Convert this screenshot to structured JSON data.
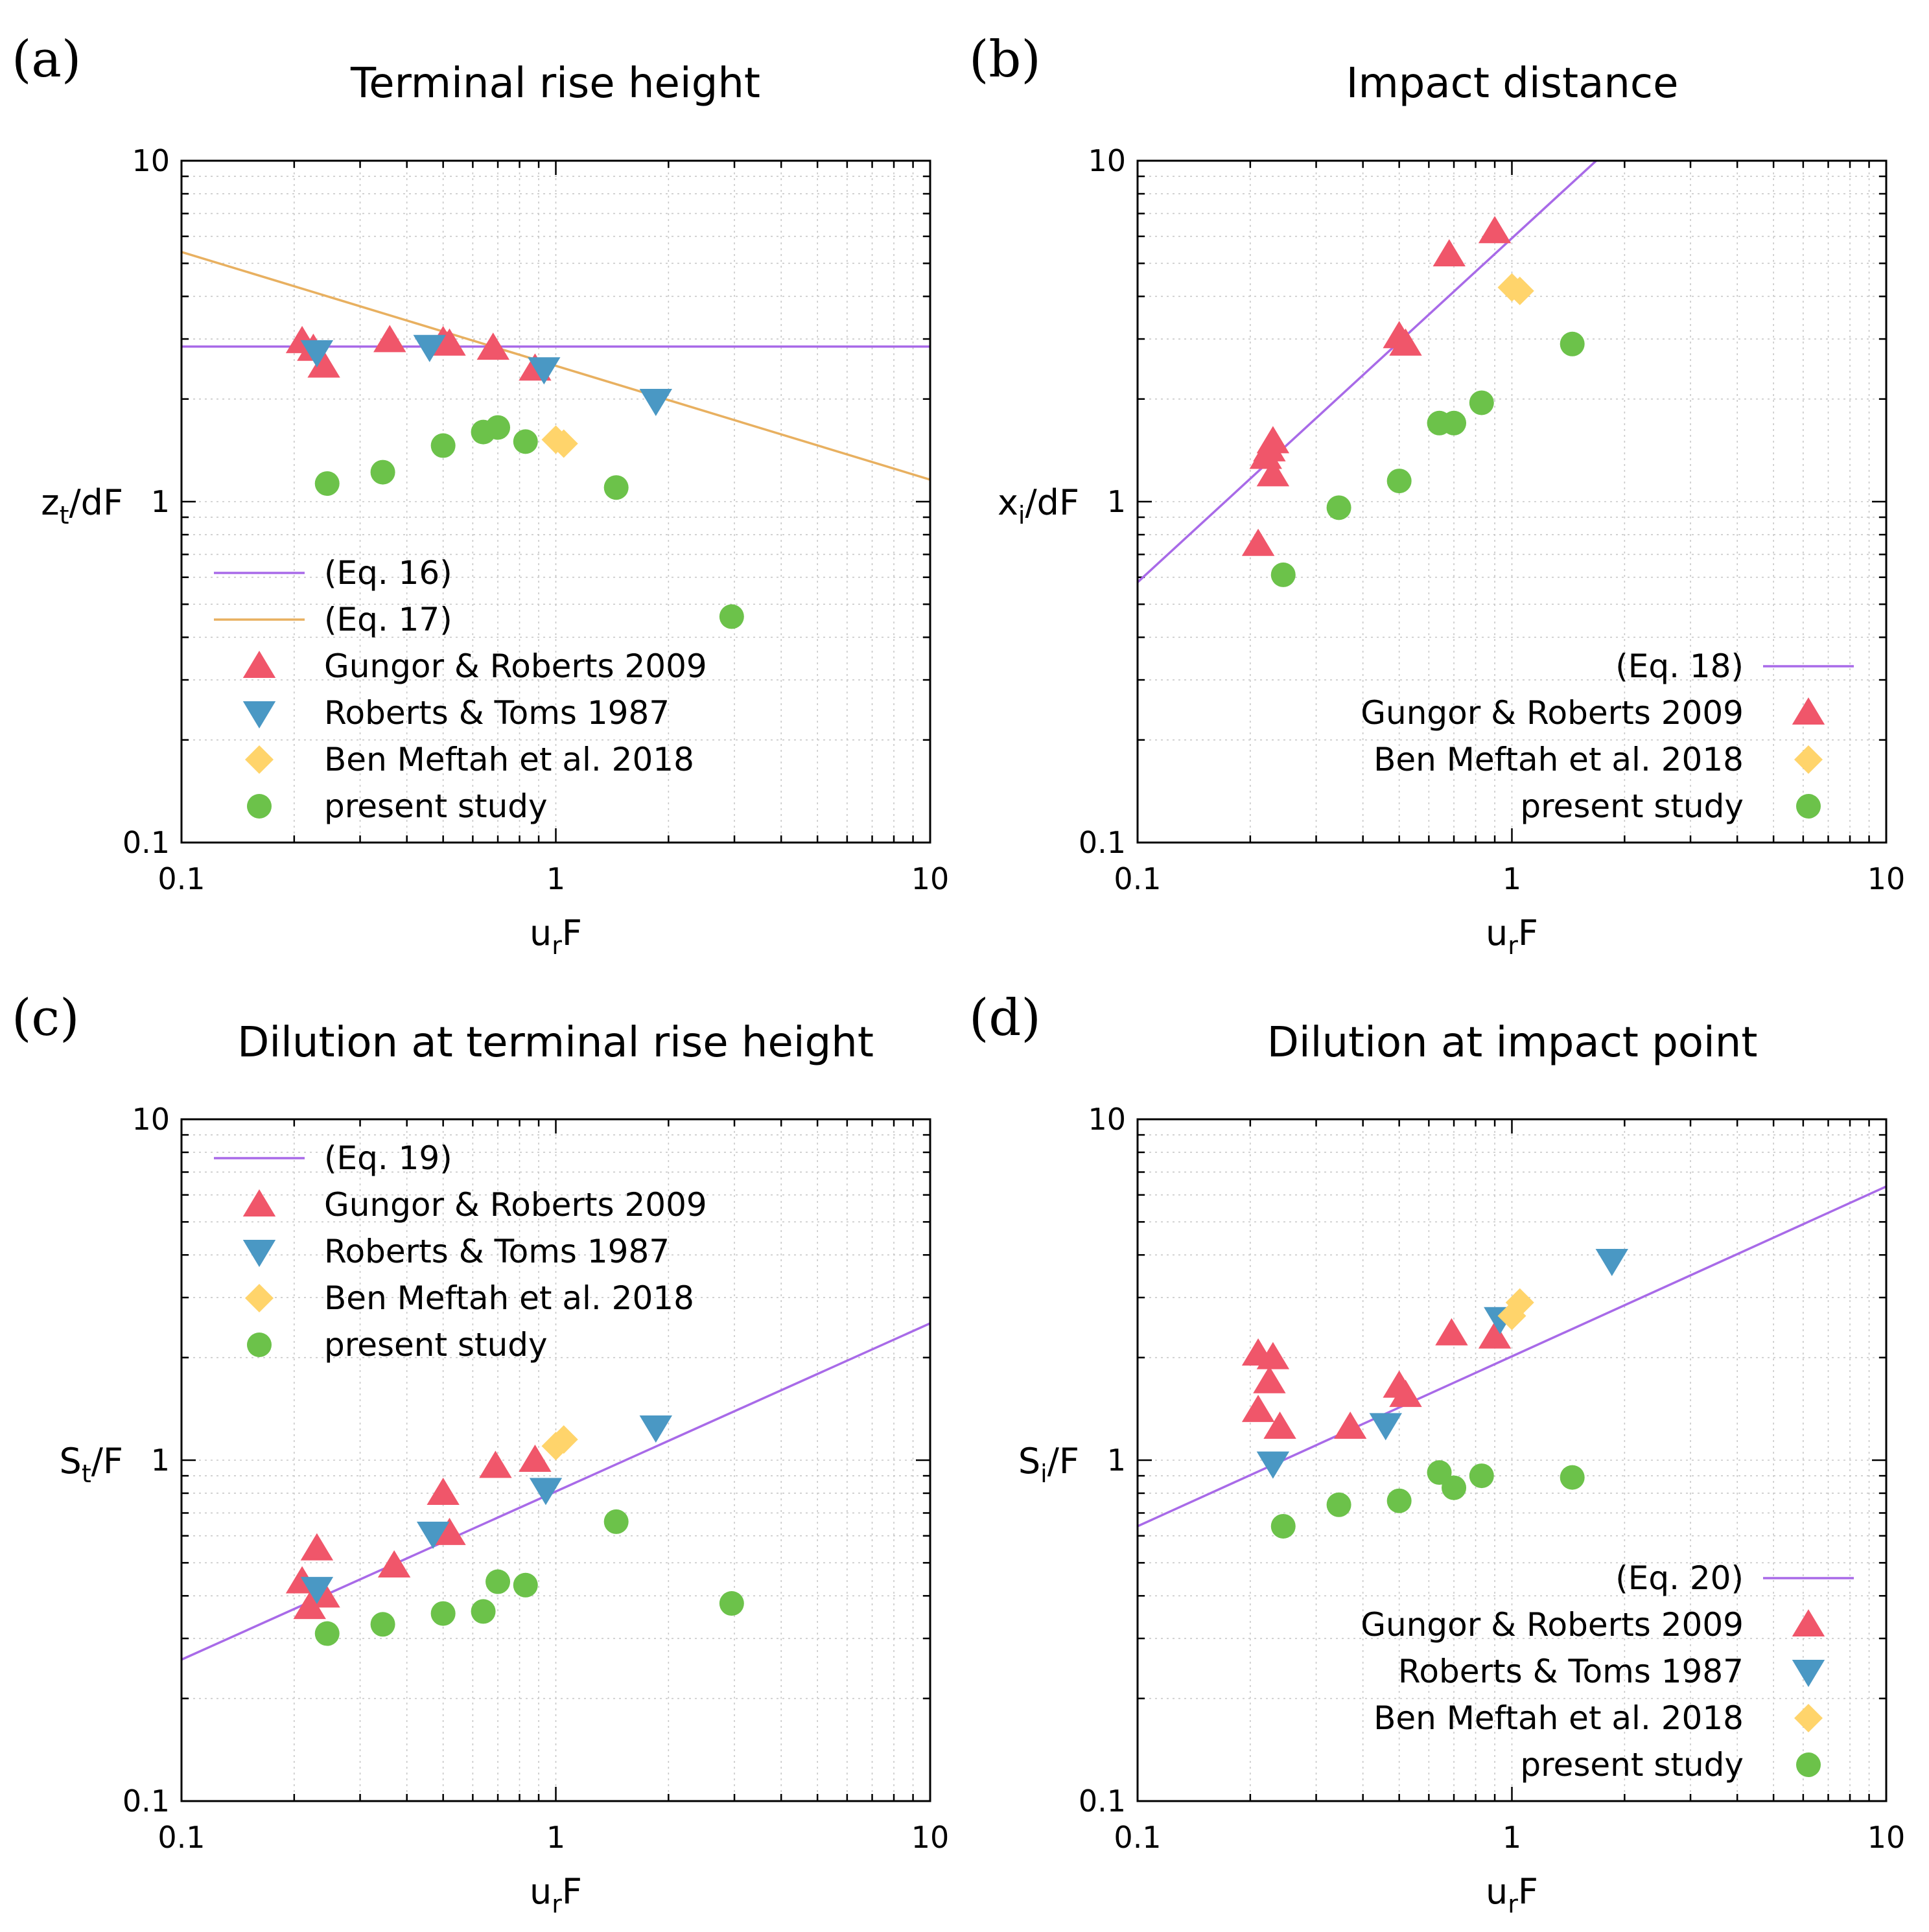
{
  "styles": {
    "Gungor & Roberts 2009": {
      "marker": "tri-up",
      "color": "#f0566a"
    },
    "Roberts & Toms 1987": {
      "marker": "tri-down",
      "color": "#4a98c4"
    },
    "Ben Meftah et al. 2018": {
      "marker": "diamond",
      "color": "#ffd46b"
    },
    "present study": {
      "marker": "circle",
      "color": "#6cc24a"
    },
    "line_purple": "#a86ae8",
    "line_orange": "#e8b060"
  },
  "chart_data": [
    {
      "id": "a",
      "panel_label": "(a)",
      "type": "scatter",
      "title": "Terminal rise height",
      "xlabel": {
        "main": "u",
        "sub": "r",
        "rest": "F"
      },
      "ylabel": {
        "main": "z",
        "sub": "t",
        "rest": "/dF"
      },
      "xscale": "log",
      "yscale": "log",
      "xlim": [
        0.1,
        10
      ],
      "ylim": [
        0.1,
        10
      ],
      "xticks": [
        "0.1",
        "1",
        "10"
      ],
      "yticks": [
        "0.1",
        "1",
        "10"
      ],
      "legend_position": "bottom-left",
      "lines": [
        {
          "name": "(Eq. 16)",
          "color": "#a86ae8",
          "x": [
            0.1,
            10
          ],
          "y": [
            2.85,
            2.85
          ]
        },
        {
          "name": "(Eq. 17)",
          "color": "#e8b060",
          "x": [
            0.1,
            10
          ],
          "y": [
            5.4,
            1.16
          ]
        }
      ],
      "series": [
        {
          "name": "Gungor & Roberts 2009",
          "points": [
            [
              0.21,
              2.95
            ],
            [
              0.225,
              2.8
            ],
            [
              0.24,
              2.5
            ],
            [
              0.36,
              2.97
            ],
            [
              0.5,
              2.95
            ],
            [
              0.52,
              2.9
            ],
            [
              0.68,
              2.82
            ],
            [
              0.88,
              2.45
            ]
          ]
        },
        {
          "name": "Roberts & Toms 1987",
          "points": [
            [
              0.23,
              2.75
            ],
            [
              0.46,
              2.85
            ],
            [
              0.93,
              2.45
            ],
            [
              1.85,
              1.98
            ]
          ]
        },
        {
          "name": "Ben Meftah et al. 2018",
          "points": [
            [
              1.0,
              1.52
            ],
            [
              1.05,
              1.48
            ]
          ]
        },
        {
          "name": "present study",
          "points": [
            [
              0.245,
              1.13
            ],
            [
              0.345,
              1.22
            ],
            [
              0.5,
              1.46
            ],
            [
              0.64,
              1.6
            ],
            [
              0.7,
              1.65
            ],
            [
              0.83,
              1.5
            ],
            [
              1.45,
              1.1
            ],
            [
              2.95,
              0.46
            ]
          ]
        }
      ],
      "legend": [
        {
          "kind": "line",
          "label": "(Eq. 16)",
          "color": "#a86ae8"
        },
        {
          "kind": "line",
          "label": "(Eq. 17)",
          "color": "#e8b060"
        },
        {
          "kind": "marker",
          "label": "Gungor & Roberts 2009"
        },
        {
          "kind": "marker",
          "label": "Roberts & Toms 1987"
        },
        {
          "kind": "marker",
          "label": "Ben Meftah et al. 2018"
        },
        {
          "kind": "marker",
          "label": "present study"
        }
      ]
    },
    {
      "id": "b",
      "panel_label": "(b)",
      "type": "scatter",
      "title": "Impact distance",
      "xlabel": {
        "main": "u",
        "sub": "r",
        "rest": "F"
      },
      "ylabel": {
        "main": "x",
        "sub": "i",
        "rest": "/dF"
      },
      "xscale": "log",
      "yscale": "log",
      "xlim": [
        0.1,
        10
      ],
      "ylim": [
        0.1,
        10
      ],
      "xticks": [
        "0.1",
        "1",
        "10"
      ],
      "yticks": [
        "0.1",
        "1",
        "10"
      ],
      "legend_position": "bottom-right",
      "lines": [
        {
          "name": "(Eq. 18)",
          "color": "#a86ae8",
          "x": [
            0.1,
            1.68
          ],
          "y": [
            0.58,
            10
          ]
        }
      ],
      "series": [
        {
          "name": "Gungor & Roberts 2009",
          "points": [
            [
              0.21,
              0.75
            ],
            [
              0.22,
              1.35
            ],
            [
              0.225,
              1.42
            ],
            [
              0.23,
              1.5
            ],
            [
              0.23,
              1.2
            ],
            [
              0.5,
              3.05
            ],
            [
              0.52,
              2.9
            ],
            [
              0.68,
              5.3
            ],
            [
              0.9,
              6.2
            ]
          ]
        },
        {
          "name": "Ben Meftah et al. 2018",
          "points": [
            [
              1.0,
              4.25
            ],
            [
              1.05,
              4.15
            ]
          ]
        },
        {
          "name": "present study",
          "points": [
            [
              0.245,
              0.61
            ],
            [
              0.345,
              0.96
            ],
            [
              0.5,
              1.15
            ],
            [
              0.64,
              1.7
            ],
            [
              0.7,
              1.7
            ],
            [
              0.83,
              1.95
            ],
            [
              1.45,
              2.9
            ]
          ]
        }
      ],
      "legend": [
        {
          "kind": "line",
          "label": "(Eq. 18)",
          "color": "#a86ae8"
        },
        {
          "kind": "marker",
          "label": "Gungor & Roberts 2009"
        },
        {
          "kind": "marker",
          "label": "Ben Meftah et al. 2018"
        },
        {
          "kind": "marker",
          "label": "present study"
        }
      ]
    },
    {
      "id": "c",
      "panel_label": "(c)",
      "type": "scatter",
      "title": "Dilution at terminal rise height",
      "xlabel": {
        "main": "u",
        "sub": "r",
        "rest": "F"
      },
      "ylabel": {
        "main": "S",
        "sub": "t",
        "rest": "/F"
      },
      "xscale": "log",
      "yscale": "log",
      "xlim": [
        0.1,
        10
      ],
      "ylim": [
        0.1,
        10
      ],
      "xticks": [
        "0.1",
        "1",
        "10"
      ],
      "yticks": [
        "0.1",
        "1",
        "10"
      ],
      "legend_position": "top-left",
      "lines": [
        {
          "name": "(Eq. 19)",
          "color": "#a86ae8",
          "x": [
            0.1,
            10
          ],
          "y": [
            0.26,
            2.52
          ]
        }
      ],
      "series": [
        {
          "name": "Gungor & Roberts 2009",
          "points": [
            [
              0.21,
              0.44
            ],
            [
              0.22,
              0.37
            ],
            [
              0.23,
              0.55
            ],
            [
              0.24,
              0.4
            ],
            [
              0.37,
              0.49
            ],
            [
              0.5,
              0.8
            ],
            [
              0.52,
              0.61
            ],
            [
              0.69,
              0.96
            ],
            [
              0.88,
              1.0
            ]
          ]
        },
        {
          "name": "Roberts & Toms 1987",
          "points": [
            [
              0.23,
              0.42
            ],
            [
              0.47,
              0.61
            ],
            [
              0.94,
              0.82
            ],
            [
              1.85,
              1.25
            ]
          ]
        },
        {
          "name": "Ben Meftah et al. 2018",
          "points": [
            [
              1.0,
              1.1
            ],
            [
              1.05,
              1.15
            ]
          ]
        },
        {
          "name": "present study",
          "points": [
            [
              0.245,
              0.31
            ],
            [
              0.345,
              0.33
            ],
            [
              0.5,
              0.355
            ],
            [
              0.64,
              0.36
            ],
            [
              0.7,
              0.44
            ],
            [
              0.83,
              0.43
            ],
            [
              1.45,
              0.66
            ],
            [
              2.95,
              0.38
            ]
          ]
        }
      ],
      "legend": [
        {
          "kind": "line",
          "label": "(Eq. 19)",
          "color": "#a86ae8"
        },
        {
          "kind": "marker",
          "label": "Gungor & Roberts 2009"
        },
        {
          "kind": "marker",
          "label": "Roberts & Toms 1987"
        },
        {
          "kind": "marker",
          "label": "Ben Meftah et al. 2018"
        },
        {
          "kind": "marker",
          "label": "present study"
        }
      ]
    },
    {
      "id": "d",
      "panel_label": "(d)",
      "type": "scatter",
      "title": "Dilution at impact point",
      "xlabel": {
        "main": "u",
        "sub": "r",
        "rest": "F"
      },
      "ylabel": {
        "main": "S",
        "sub": "i",
        "rest": "/F"
      },
      "xscale": "log",
      "yscale": "log",
      "xlim": [
        0.1,
        10
      ],
      "ylim": [
        0.1,
        10
      ],
      "xticks": [
        "0.1",
        "1",
        "10"
      ],
      "yticks": [
        "0.1",
        "1",
        "10"
      ],
      "legend_position": "bottom-right",
      "lines": [
        {
          "name": "(Eq. 20)",
          "color": "#a86ae8",
          "x": [
            0.1,
            10
          ],
          "y": [
            0.64,
            6.35
          ]
        }
      ],
      "series": [
        {
          "name": "Gungor & Roberts 2009",
          "points": [
            [
              0.21,
              2.05
            ],
            [
              0.21,
              1.4
            ],
            [
              0.225,
              1.7
            ],
            [
              0.23,
              2.0
            ],
            [
              0.24,
              1.25
            ],
            [
              0.37,
              1.25
            ],
            [
              0.5,
              1.65
            ],
            [
              0.52,
              1.55
            ],
            [
              0.69,
              2.35
            ],
            [
              0.9,
              2.3
            ]
          ]
        },
        {
          "name": "Roberts & Toms 1987",
          "points": [
            [
              0.23,
              0.98
            ],
            [
              0.46,
              1.27
            ],
            [
              0.93,
              2.6
            ],
            [
              1.85,
              3.85
            ]
          ]
        },
        {
          "name": "Ben Meftah et al. 2018",
          "points": [
            [
              1.0,
              2.65
            ],
            [
              1.05,
              2.9
            ]
          ]
        },
        {
          "name": "present study",
          "points": [
            [
              0.245,
              0.64
            ],
            [
              0.345,
              0.74
            ],
            [
              0.5,
              0.76
            ],
            [
              0.64,
              0.92
            ],
            [
              0.7,
              0.83
            ],
            [
              0.83,
              0.9
            ],
            [
              1.45,
              0.89
            ]
          ]
        }
      ],
      "legend": [
        {
          "kind": "line",
          "label": "(Eq. 20)",
          "color": "#a86ae8"
        },
        {
          "kind": "marker",
          "label": "Gungor & Roberts 2009"
        },
        {
          "kind": "marker",
          "label": "Roberts & Toms 1987"
        },
        {
          "kind": "marker",
          "label": "Ben Meftah et al. 2018"
        },
        {
          "kind": "marker",
          "label": "present study"
        }
      ]
    }
  ]
}
